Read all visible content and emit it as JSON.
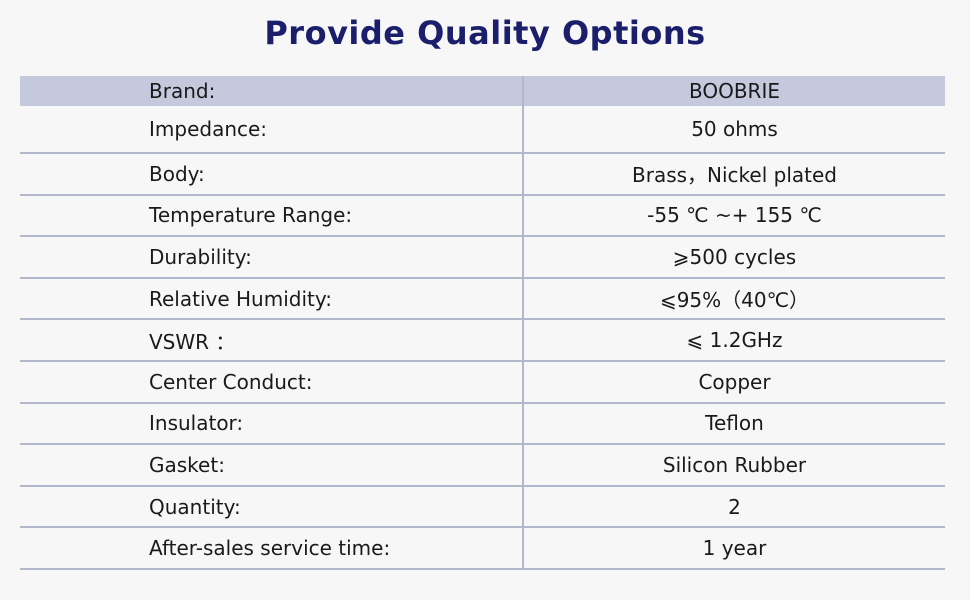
{
  "title": "Provide Quality Options",
  "specs": [
    {
      "label": "Brand:",
      "value": "BOOBRIE"
    },
    {
      "label": "Impedance:",
      "value": "50 ohms"
    },
    {
      "label": "Body:",
      "value": "Brass，Nickel plated"
    },
    {
      "label": "Temperature Range:",
      "value": "-55 ℃ ~+ 155 ℃"
    },
    {
      "label": "Durability:",
      "value": "⩾500 cycles"
    },
    {
      "label": "Relative Humidity:",
      "value": "⩽95%（40℃）"
    },
    {
      "label": "VSWR ：",
      "value": "⩽ 1.2GHz"
    },
    {
      "label": "Center Conduct:",
      "value": "Copper"
    },
    {
      "label": "Insulator:",
      "value": "Teflon"
    },
    {
      "label": "Gasket:",
      "value": "Silicon Rubber"
    },
    {
      "label": "Quantity:",
      "value": "2"
    },
    {
      "label": "After-sales service time:",
      "value": "1 year"
    }
  ],
  "colors": {
    "title": "#1b1f6b",
    "header_fill": "#c5c9dd",
    "grid": "#b3b7cc"
  }
}
